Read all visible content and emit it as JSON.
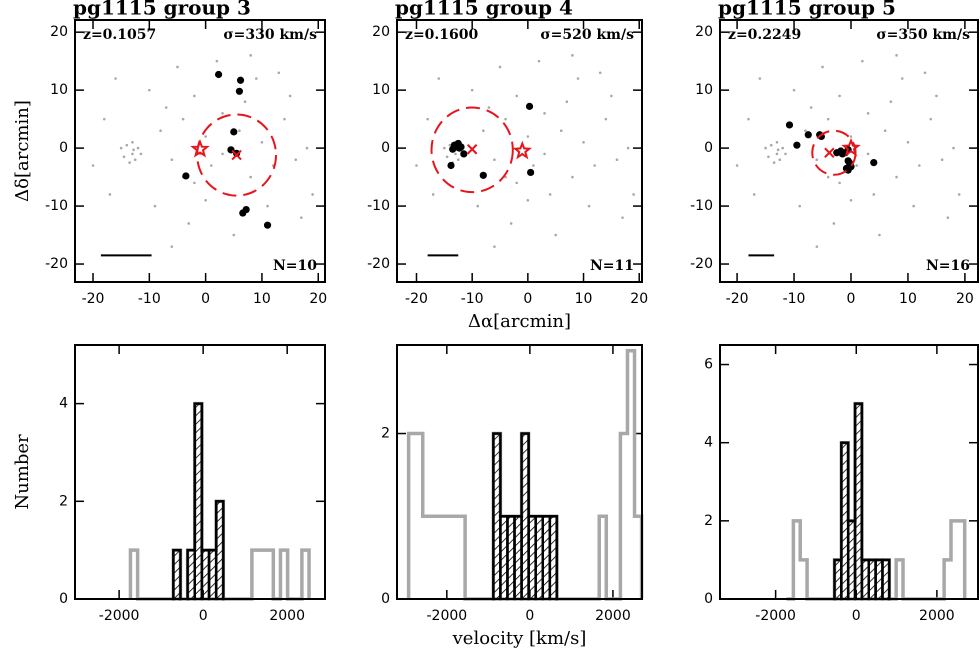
{
  "chart_data": [
    {
      "type": "scatter",
      "title": "pg1115 group 3",
      "ylabel": "Δδ[arcmin]",
      "annotations": [
        "z=0.1057",
        "σ=330 km/s",
        "N=10"
      ],
      "xlim": [
        -23.2,
        21.2
      ],
      "ylim": [
        -23.1,
        22.1
      ],
      "xticks": [
        -20,
        -10,
        0,
        10,
        20
      ],
      "yticks": [
        -20,
        -10,
        0,
        10,
        20
      ],
      "series": [
        {
          "color": "#a8a8a8",
          "marker_size": 1.3,
          "x": [
            -13,
            -14,
            -12.5,
            -13.5,
            -12,
            -14.5,
            -11.5,
            -13,
            -15,
            -12.8,
            -8,
            -6,
            -4,
            -2,
            0,
            1,
            3,
            4,
            6,
            8,
            10,
            12,
            14,
            16,
            18,
            -18,
            -17,
            -10,
            -9,
            -5,
            -3,
            2,
            5,
            9,
            11,
            15,
            17,
            -16,
            -20,
            -6,
            0,
            -2,
            7,
            13,
            3,
            -7,
            -1,
            -4,
            19,
            8
          ],
          "y": [
            -1,
            0.5,
            -2,
            -2.5,
            0,
            -1.5,
            -1,
            1,
            0,
            -0.3,
            3,
            -2,
            5,
            -6,
            2,
            -3,
            6,
            -8,
            3,
            -5,
            1,
            -3,
            5,
            -2,
            0,
            5,
            -8,
            10,
            -10,
            14,
            -13,
            15,
            -15,
            12,
            -10,
            9,
            -12,
            12,
            -3,
            -17,
            -9,
            9,
            8,
            13,
            -1,
            7,
            -1,
            -5,
            -8,
            16
          ]
        },
        {
          "color": "#000000",
          "marker_size": 3.6,
          "x": [
            2.3,
            6.2,
            6,
            5,
            4.5,
            5.5,
            -3.5,
            7.2,
            6.6,
            11
          ],
          "y": [
            12.7,
            11.7,
            9.8,
            2.8,
            -0.3,
            -0.9,
            -4.8,
            -10.6,
            -11.2,
            -13.3
          ]
        }
      ],
      "marker_color": "#e8141b",
      "star": {
        "x": -1,
        "y": -0.2
      },
      "cross": {
        "x": 5.5,
        "y": -1.2
      },
      "circle": {
        "x": 5.5,
        "y": -1.2,
        "r": 7
      },
      "scale_bar": {
        "x0": -18.6,
        "x1": -9.6,
        "y": -18.5
      }
    },
    {
      "type": "scatter",
      "title": "pg1115 group 4",
      "xlabel": "Δα[arcmin]",
      "annotations": [
        "z=0.1600",
        "σ=520 km/s",
        "N=11"
      ],
      "xlim": [
        -23.5,
        20.5
      ],
      "ylim": [
        -23.1,
        22.1
      ],
      "xticks": [
        -20,
        -10,
        0,
        10,
        20
      ],
      "yticks": [
        -20,
        -10,
        0,
        10,
        20
      ],
      "series": [
        {
          "color": "#a8a8a8",
          "marker_size": 1.3,
          "x": [
            -13,
            -14,
            -12.5,
            -13.5,
            -12,
            -14.5,
            -11.5,
            -13,
            -15,
            -12.8,
            -8,
            -6,
            -4,
            -2,
            0,
            1,
            3,
            4,
            6,
            8,
            10,
            12,
            14,
            16,
            18,
            -18,
            -17,
            -10,
            -9,
            -5,
            -3,
            2,
            5,
            9,
            11,
            15,
            17,
            -16,
            -20,
            -6,
            0,
            -2,
            7,
            13,
            3,
            -7,
            -1,
            -4,
            19,
            8
          ],
          "y": [
            -1,
            0.5,
            -2,
            -2.5,
            0,
            -1.5,
            -1,
            1,
            0,
            -0.3,
            3,
            -2,
            5,
            -6,
            2,
            -3,
            6,
            -8,
            3,
            -5,
            1,
            -3,
            5,
            -2,
            0,
            5,
            -8,
            10,
            -10,
            14,
            -13,
            15,
            -15,
            12,
            -10,
            9,
            -12,
            12,
            -3,
            -17,
            -9,
            9,
            8,
            13,
            -1,
            7,
            -1,
            -5,
            -8,
            16
          ]
        },
        {
          "color": "#000000",
          "marker_size": 3.6,
          "x": [
            -13.2,
            -12.8,
            -12.5,
            -13.5,
            -12,
            -13.8,
            -11.5,
            -8,
            0.3,
            0.5,
            -12.3
          ],
          "y": [
            0.5,
            0.3,
            0.8,
            -0.2,
            0.2,
            -3,
            -1,
            -4.7,
            7.2,
            -4.2,
            0
          ]
        }
      ],
      "marker_color": "#e8141b",
      "star": {
        "x": -1,
        "y": -0.5
      },
      "cross": {
        "x": -10,
        "y": -0.2
      },
      "circle": {
        "x": -10,
        "y": -0.3,
        "r": 7.3
      },
      "scale_bar": {
        "x0": -18,
        "x1": -12.5,
        "y": -18.5
      }
    },
    {
      "type": "scatter",
      "title": "pg1115 group 5",
      "annotations": [
        "z=0.2249",
        "σ=350 km/s",
        "N=16"
      ],
      "xlim": [
        -23,
        22.3
      ],
      "ylim": [
        -23.1,
        22.1
      ],
      "xticks": [
        -20,
        -10,
        0,
        10,
        20
      ],
      "yticks": [
        -20,
        -10,
        0,
        10,
        20
      ],
      "series": [
        {
          "color": "#a8a8a8",
          "marker_size": 1.3,
          "x": [
            -13,
            -14,
            -12.5,
            -13.5,
            -12,
            -14.5,
            -11.5,
            -13,
            -15,
            -12.8,
            -8,
            -6,
            -4,
            -2,
            0,
            1,
            3,
            4,
            6,
            8,
            10,
            12,
            14,
            16,
            18,
            -18,
            -17,
            -10,
            -9,
            -5,
            -3,
            2,
            5,
            9,
            11,
            15,
            17,
            -16,
            -20,
            -6,
            0,
            -2,
            7,
            13,
            3,
            -7,
            -1,
            -4,
            19,
            8
          ],
          "y": [
            -1,
            0.5,
            -2,
            -2.5,
            0,
            -1.5,
            -1,
            1,
            0,
            -0.3,
            3,
            -2,
            5,
            -6,
            2,
            -3,
            6,
            -8,
            3,
            -5,
            1,
            -3,
            5,
            -2,
            0,
            5,
            -8,
            10,
            -10,
            14,
            -13,
            15,
            -15,
            12,
            -10,
            9,
            -12,
            12,
            -3,
            -17,
            -9,
            9,
            8,
            13,
            -1,
            7,
            -1,
            -5,
            -8,
            16
          ]
        },
        {
          "color": "#000000",
          "marker_size": 3.6,
          "x": [
            -10.8,
            -9.5,
            -7.5,
            -5.5,
            -5.2,
            -2.5,
            -1.8,
            -1,
            -0.5,
            -0.8,
            -0.5,
            0,
            -0.3,
            4,
            -0.5,
            -1.5
          ],
          "y": [
            4,
            0.5,
            2.3,
            2.3,
            2,
            -0.8,
            -0.5,
            -0.8,
            -2.2,
            -3.5,
            -3.8,
            -3.2,
            -2.5,
            -2.5,
            -0.3,
            -1
          ]
        }
      ],
      "marker_color": "#e8141b",
      "star": {
        "x": 0,
        "y": 0
      },
      "cross": {
        "x": -3.8,
        "y": -0.8
      },
      "circle": {
        "x": -3,
        "y": -0.8,
        "r": 3.8
      },
      "scale_bar": {
        "x0": -18,
        "x1": -13.5,
        "y": -18.5
      }
    },
    {
      "type": "histogram",
      "ylabel": "Number",
      "xlim": [
        -3050,
        2900
      ],
      "ylim": [
        0,
        5.2
      ],
      "xticks": [
        -2000,
        0,
        2000
      ],
      "yticks": [
        0,
        2,
        4
      ],
      "bins": [
        -1730,
        -1560,
        -1390,
        -1220,
        -1050,
        -880,
        -710,
        -540,
        -370,
        -200,
        -30,
        140,
        310,
        480,
        650,
        820,
        990,
        1160,
        1330,
        1500,
        1670,
        1840,
        2010,
        2180,
        2350,
        2520
      ],
      "series": [
        {
          "color": "#a8a8a8",
          "values": [
            1,
            0,
            0,
            0,
            0,
            0,
            1,
            0,
            1,
            4,
            1,
            1,
            2,
            0,
            0,
            0,
            0,
            1,
            1,
            1,
            0,
            1,
            0,
            0,
            1
          ]
        },
        {
          "color": "#000000",
          "hatch": true,
          "values": [
            0,
            0,
            0,
            0,
            0,
            0,
            1,
            0,
            1,
            4,
            1,
            1,
            2,
            0,
            0,
            0,
            0,
            0,
            0,
            0,
            0,
            0,
            0,
            0,
            0
          ]
        }
      ]
    },
    {
      "type": "histogram",
      "xlabel": "velocity [km/s]",
      "xlim": [
        -3200,
        2700
      ],
      "ylim": [
        0,
        3.07
      ],
      "xticks": [
        -2000,
        0,
        2000
      ],
      "yticks": [
        0,
        2
      ],
      "bins": [
        -2920,
        -2750,
        -2580,
        -2410,
        -2240,
        -2070,
        -1900,
        -1730,
        -1560,
        -1390,
        -1220,
        -1050,
        -880,
        -710,
        -540,
        -370,
        -200,
        -30,
        140,
        310,
        480,
        650,
        820,
        990,
        1160,
        1330,
        1500,
        1670,
        1840,
        2010,
        2180,
        2350,
        2520,
        2690
      ],
      "series": [
        {
          "color": "#a8a8a8",
          "values": [
            2,
            2,
            1,
            1,
            1,
            1,
            1,
            1,
            0,
            0,
            0,
            0,
            2,
            1,
            1,
            1,
            2,
            1,
            1,
            1,
            1,
            0,
            0,
            0,
            0,
            0,
            0,
            1,
            0,
            0,
            2,
            3,
            1
          ]
        },
        {
          "color": "#000000",
          "hatch": true,
          "values": [
            0,
            0,
            0,
            0,
            0,
            0,
            0,
            0,
            0,
            0,
            0,
            0,
            2,
            1,
            1,
            1,
            2,
            1,
            1,
            1,
            1,
            0,
            0,
            0,
            0,
            0,
            0,
            0,
            0,
            0,
            0,
            0,
            0
          ]
        }
      ]
    },
    {
      "type": "histogram",
      "xlim": [
        -3380,
        3020
      ],
      "ylim": [
        0,
        6.5
      ],
      "xticks": [
        -2000,
        0,
        2000
      ],
      "yticks": [
        0,
        2,
        4,
        6
      ],
      "bins": [
        -1730,
        -1560,
        -1390,
        -1220,
        -1050,
        -880,
        -710,
        -540,
        -370,
        -200,
        -30,
        140,
        310,
        480,
        650,
        820,
        990,
        1160,
        1330,
        1500,
        1670,
        1840,
        2010,
        2180,
        2350,
        2520,
        2690
      ],
      "series": [
        {
          "color": "#a8a8a8",
          "values": [
            0,
            2,
            1,
            0,
            0,
            0,
            0,
            1,
            4,
            2,
            5,
            1,
            1,
            1,
            1,
            0,
            1,
            0,
            0,
            0,
            0,
            0,
            0,
            1,
            2,
            2
          ]
        },
        {
          "color": "#000000",
          "hatch": true,
          "values": [
            0,
            0,
            0,
            0,
            0,
            0,
            0,
            1,
            4,
            2,
            5,
            1,
            1,
            1,
            1,
            0,
            0,
            0,
            0,
            0,
            0,
            0,
            0,
            0,
            0,
            0
          ]
        }
      ]
    }
  ]
}
